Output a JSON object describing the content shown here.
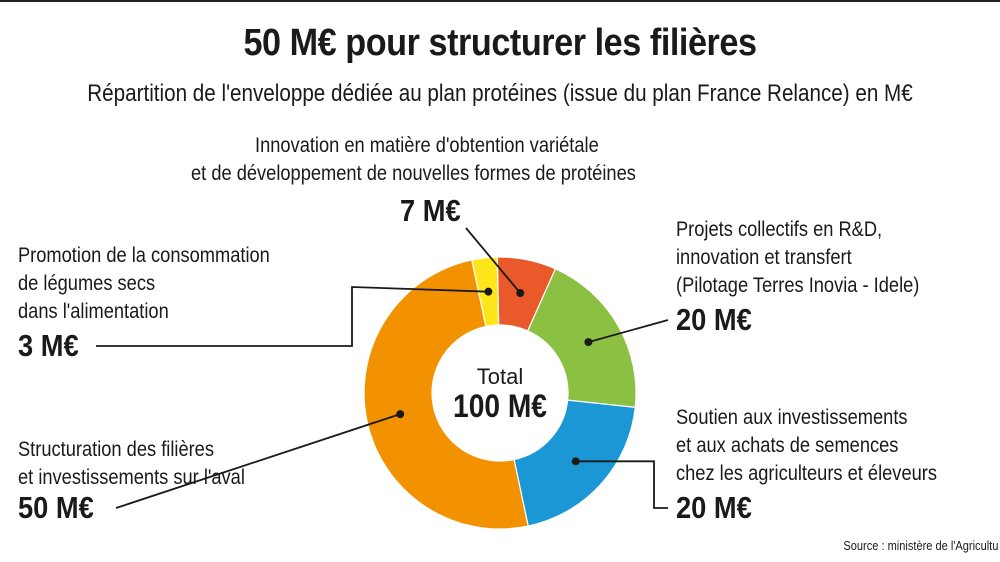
{
  "chart_data": {
    "type": "pie",
    "title": "50 M€ pour structurer les filières",
    "subtitle": "Répartition de l'enveloppe dédiée au plan protéines (issue du plan France Relance) en M€",
    "center_label": "Total",
    "center_value": "100 M€",
    "slices": [
      {
        "label_lines": [
          "Innovation en matière d'obtention variétale",
          "et de développement de nouvelles formes de protéines"
        ],
        "value": 7,
        "value_label": "7 M€",
        "color": "#e9592a"
      },
      {
        "label_lines": [
          "Projets collectifs en R&D,",
          "innovation et transfert",
          "(Pilotage Terres Inovia - Idele)"
        ],
        "value": 20,
        "value_label": "20 M€",
        "color": "#8cc043"
      },
      {
        "label_lines": [
          "Soutien aux investissements",
          "et aux achats de semences",
          "chez les agriculteurs et éleveurs"
        ],
        "value": 20,
        "value_label": "20 M€",
        "color": "#1c97d6"
      },
      {
        "label_lines": [
          "Structuration des filières",
          "et investissements sur l'aval"
        ],
        "value": 50,
        "value_label": "50 M€",
        "color": "#f39200"
      },
      {
        "label_lines": [
          "Promotion de la consommation",
          "de légumes secs",
          "dans l'alimentation"
        ],
        "value": 3,
        "value_label": "3 M€",
        "color": "#ffe61a"
      }
    ],
    "source": "Source : ministère de l'Agricultu"
  }
}
